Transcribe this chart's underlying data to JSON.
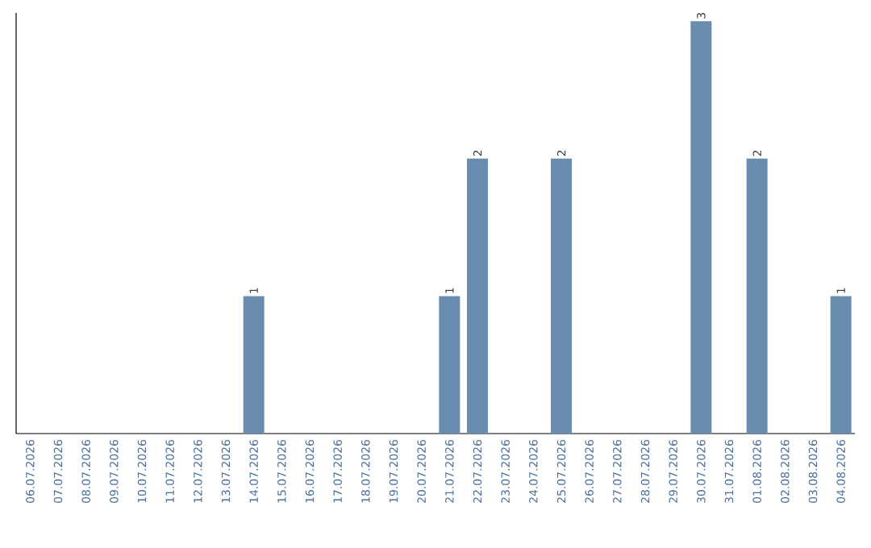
{
  "chart_data": {
    "type": "bar",
    "categories": [
      "06.07.2026",
      "07.07.2026",
      "08.07.2026",
      "09.07.2026",
      "10.07.2026",
      "11.07.2026",
      "12.07.2026",
      "13.07.2026",
      "14.07.2026",
      "15.07.2026",
      "16.07.2026",
      "17.07.2026",
      "18.07.2026",
      "19.07.2026",
      "20.07.2026",
      "21.07.2026",
      "22.07.2026",
      "23.07.2026",
      "24.07.2026",
      "25.07.2026",
      "26.07.2026",
      "27.07.2026",
      "28.07.2026",
      "29.07.2026",
      "30.07.2026",
      "31.07.2026",
      "01.08.2026",
      "02.08.2026",
      "03.08.2026",
      "04.08.2026"
    ],
    "values": [
      0,
      0,
      0,
      0,
      0,
      0,
      0,
      0,
      1,
      0,
      0,
      0,
      0,
      0,
      0,
      1,
      2,
      0,
      0,
      2,
      0,
      0,
      0,
      0,
      3,
      0,
      2,
      0,
      0,
      1
    ],
    "value_labels": [
      null,
      null,
      null,
      null,
      null,
      null,
      null,
      null,
      "1",
      null,
      null,
      null,
      null,
      null,
      null,
      "1",
      "2",
      null,
      null,
      "2",
      null,
      null,
      null,
      null,
      "3",
      null,
      "2",
      null,
      null,
      "1"
    ],
    "color": "#6a8caf",
    "tick_labels": "x"
  }
}
